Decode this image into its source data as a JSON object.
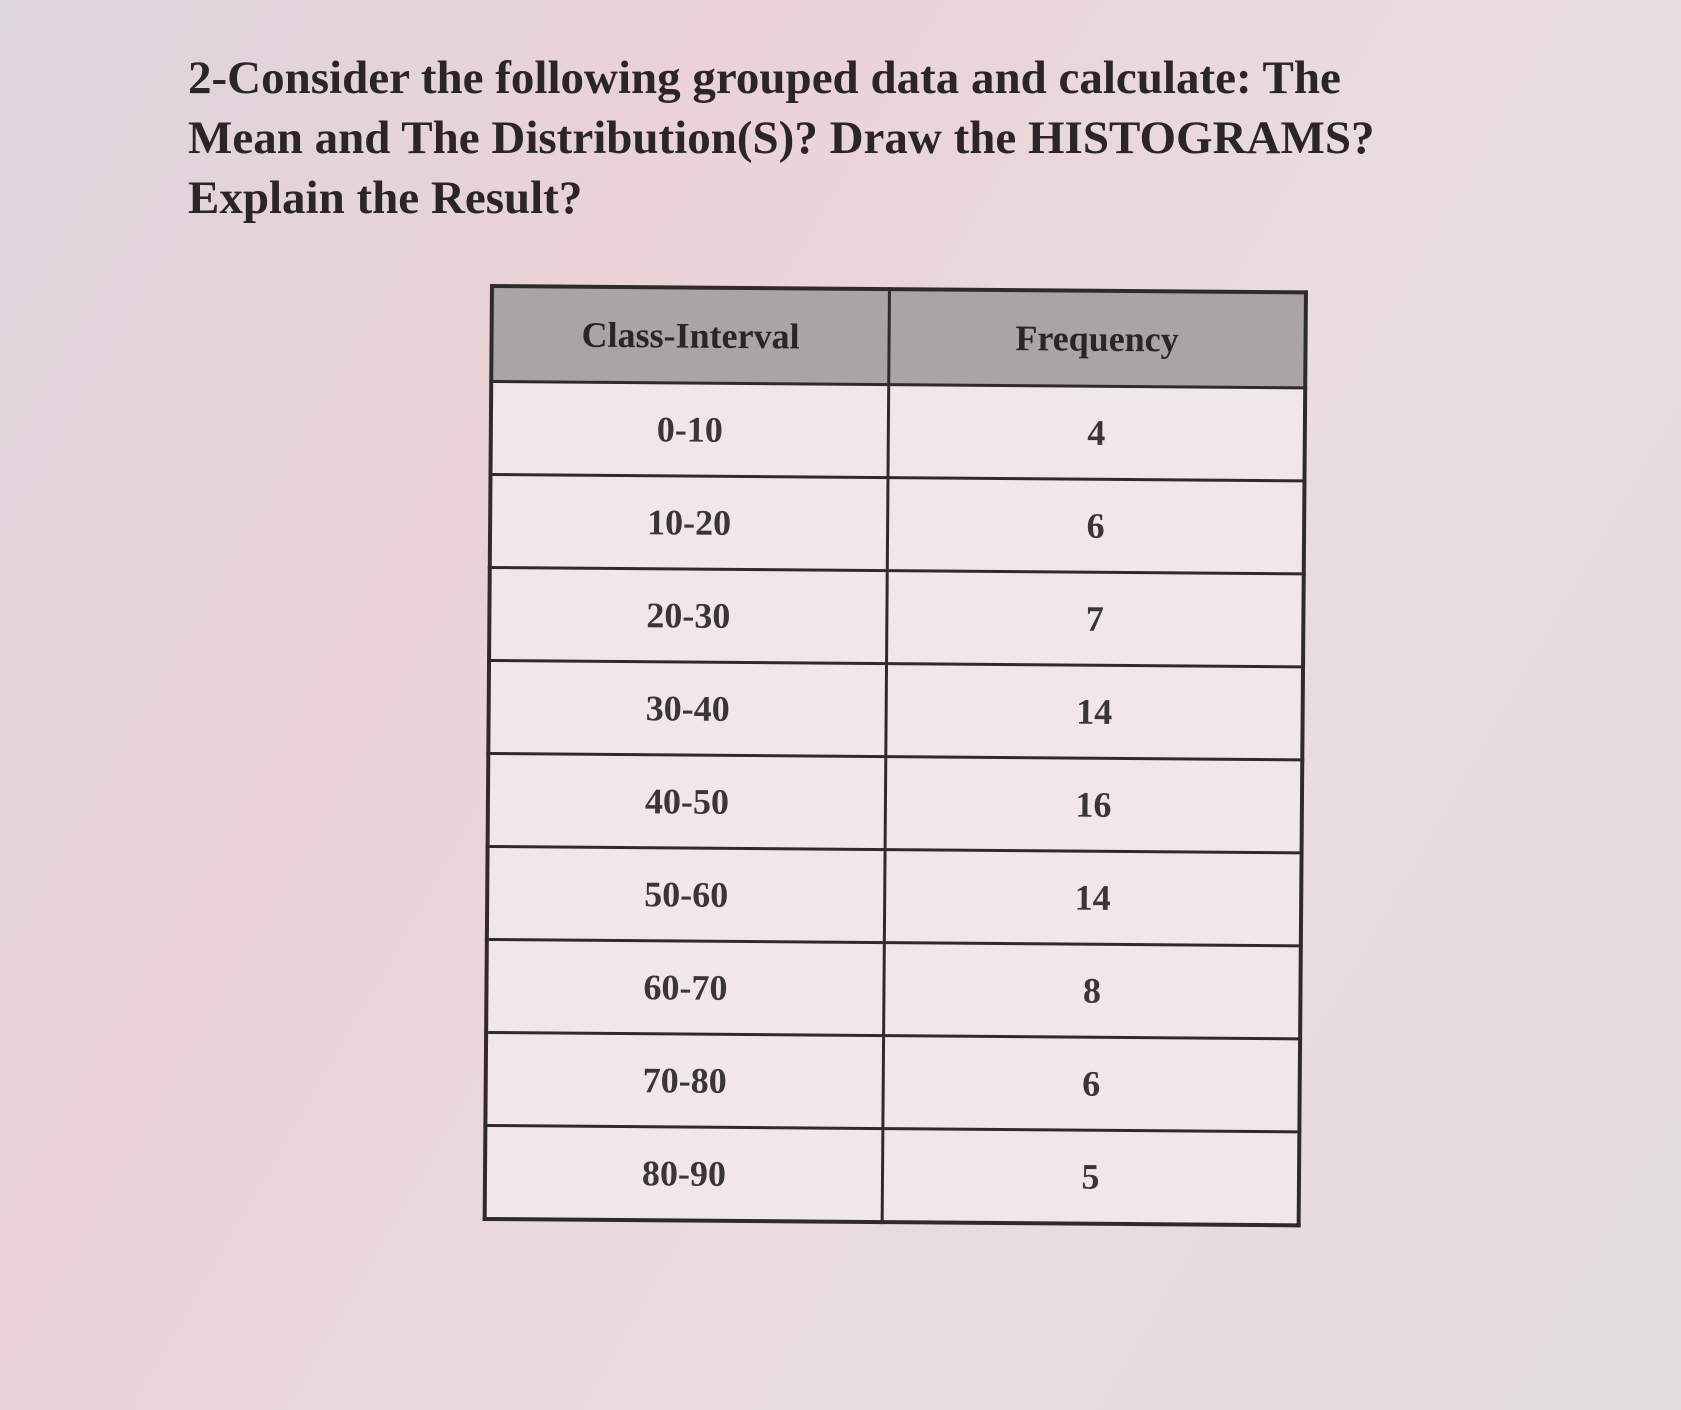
{
  "question": {
    "lines": [
      "2-Consider the following grouped data and calculate: The",
      "Mean and The Distribution(S)? Draw the HISTOGRAMS?",
      "Explain the Result?"
    ]
  },
  "table": {
    "header": [
      "Class-Interval",
      "Frequency"
    ],
    "rows": [
      [
        "0-10",
        4
      ],
      [
        "10-20",
        6
      ],
      [
        "20-30",
        7
      ],
      [
        "30-40",
        14
      ],
      [
        "40-50",
        16
      ],
      [
        "50-60",
        14
      ],
      [
        "60-70",
        8
      ],
      [
        "70-80",
        6
      ],
      [
        "80-90",
        5
      ]
    ]
  }
}
